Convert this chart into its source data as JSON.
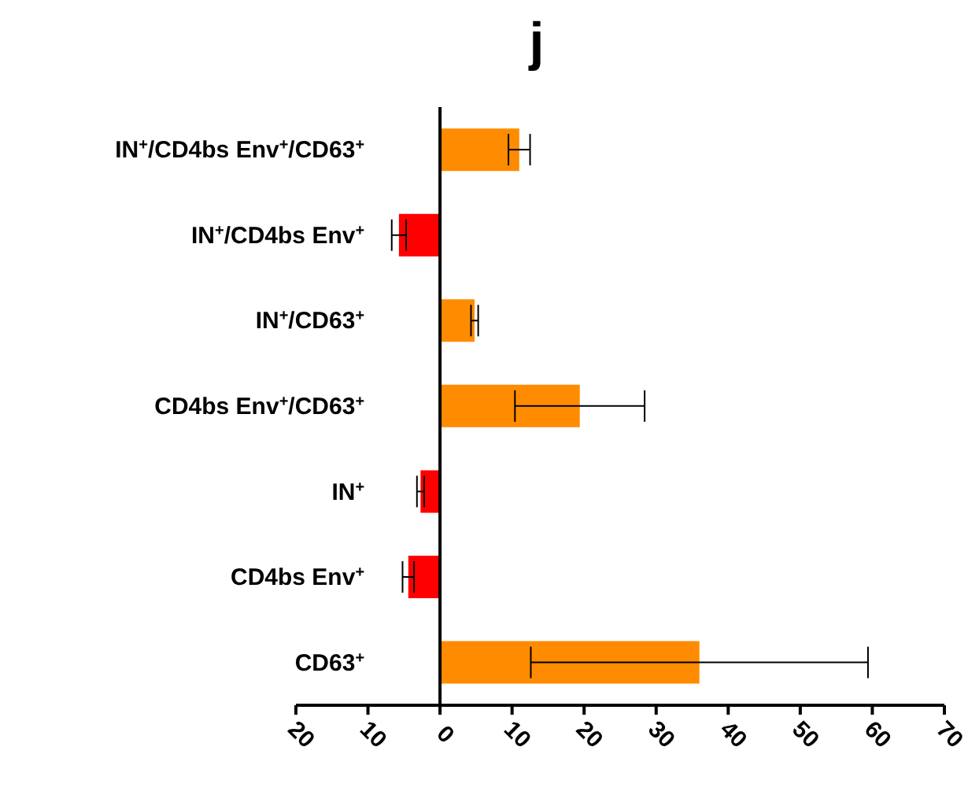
{
  "chart_data": {
    "type": "bar",
    "orientation": "horizontal",
    "title": "j",
    "categories": [
      "IN$^{+}$/CD4bs Env$^{+}$/CD63$^{+}$",
      "IN$^{+}$/CD4bs Env$^{+}$",
      "IN$^{+}$/CD63$^{+}$",
      "CD4bs Env$^{+}$/CD63$^{+}$",
      "IN$^{+}$",
      "CD4bs Env$^{+}$",
      "CD63$^{+}$"
    ],
    "values": [
      11,
      -5.7,
      4.8,
      19.4,
      -2.7,
      -4.4,
      36
    ],
    "errors": [
      1.5,
      1,
      0.5,
      9,
      0.5,
      0.8,
      23.4
    ],
    "colors": [
      "#ff8c00",
      "#ff0000",
      "#ff8c00",
      "#ff8c00",
      "#ff0000",
      "#ff0000",
      "#ff8c00"
    ],
    "xlim": [
      -20,
      70
    ],
    "xticks": [
      {
        "value": -20,
        "label": "20"
      },
      {
        "value": -10,
        "label": "10"
      },
      0,
      10,
      20,
      30,
      40,
      50,
      60,
      70
    ]
  }
}
